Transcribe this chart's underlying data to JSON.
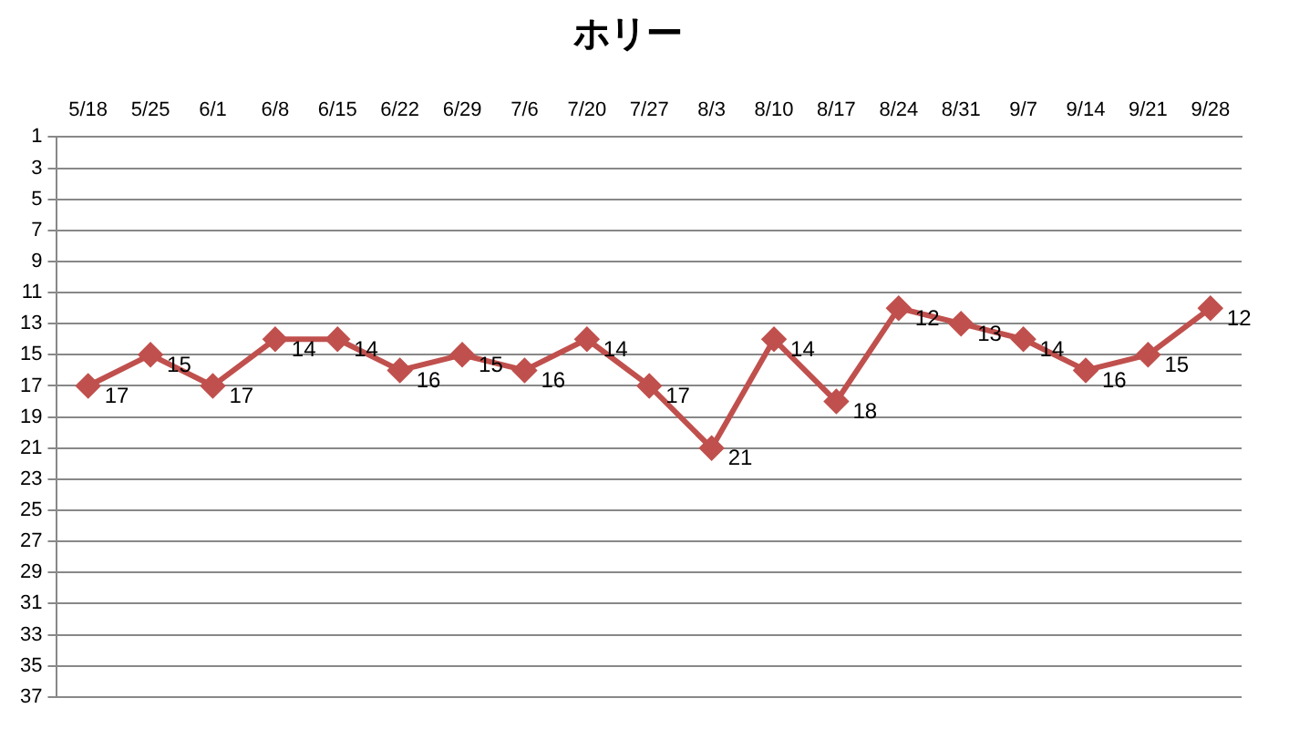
{
  "chart_data": {
    "type": "line",
    "title": "ホリー",
    "categories": [
      "5/18",
      "5/25",
      "6/1",
      "6/8",
      "6/15",
      "6/22",
      "6/29",
      "7/6",
      "7/20",
      "7/27",
      "8/3",
      "8/10",
      "8/17",
      "8/24",
      "8/31",
      "9/7",
      "9/14",
      "9/21",
      "9/28"
    ],
    "series": [
      {
        "color": "#c0504d",
        "values": [
          17,
          15,
          17,
          14,
          14,
          16,
          15,
          16,
          14,
          17,
          21,
          14,
          18,
          12,
          13,
          14,
          16,
          15,
          12
        ]
      }
    ],
    "ylim": [
      37,
      1
    ],
    "yticks": [
      1,
      3,
      5,
      7,
      9,
      11,
      13,
      15,
      17,
      19,
      21,
      23,
      25,
      27,
      29,
      31,
      33,
      35,
      37
    ],
    "grid": "y",
    "legend": false,
    "marker": "diamond",
    "line_style": "solid",
    "data_labels": true
  }
}
